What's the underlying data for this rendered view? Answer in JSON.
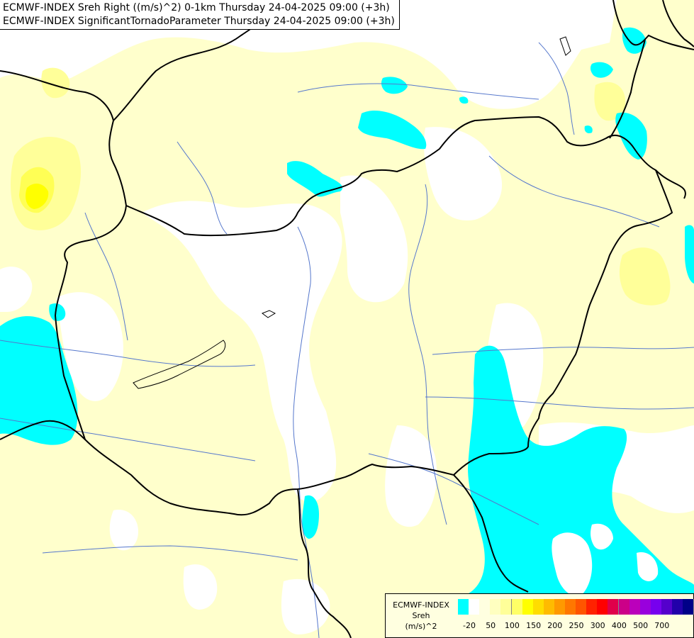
{
  "title": {
    "line1": "ECMWF-INDEX Sreh Right ((m/s)^2) 0-1km Thursday 24-04-2025 09:00 (+3h)",
    "line2": "ECMWF-INDEX SignificantTornadoParameter Thursday 24-04-2025 09:00 (+3h)"
  },
  "legend": {
    "name": "ECMWF-INDEX",
    "variable": "Sreh",
    "unit": "(m/s)^2",
    "colors": [
      "#00ffff",
      "#ffffff",
      "#ffffe0",
      "#ffffc0",
      "#ffff99",
      "#ffff66",
      "#ffff00",
      "#ffdd00",
      "#ffbb00",
      "#ff9900",
      "#ff7700",
      "#ff5500",
      "#ff2200",
      "#ff0000",
      "#e0004a",
      "#cc0088",
      "#bb00bb",
      "#9900dd",
      "#7700ee",
      "#5500cc",
      "#2200aa",
      "#000088"
    ],
    "ticks": [
      "-20",
      "50",
      "100",
      "150",
      "200",
      "250",
      "300",
      "400",
      "500",
      "700"
    ]
  },
  "colors": {
    "low_negative": "#00ffff",
    "near_zero": "#ffffff",
    "low_positive": "#ffffcc",
    "moderate": "#ffff88",
    "high": "#ffff00",
    "border": "#000000",
    "river": "#5577cc"
  }
}
